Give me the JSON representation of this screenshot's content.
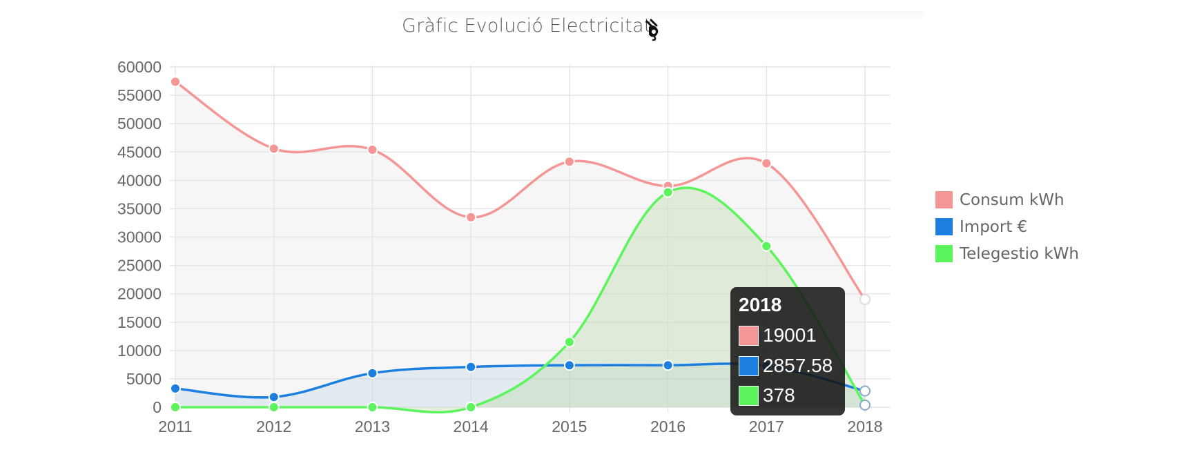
{
  "title": "Gràfic Evolució Electricitat",
  "icon": "plug-icon",
  "chart_data": {
    "type": "line",
    "title": "Gràfic Evolució Electricitat",
    "categories": [
      "2011",
      "2012",
      "2013",
      "2014",
      "2015",
      "2016",
      "2017",
      "2018"
    ],
    "ylim": [
      0,
      60000
    ],
    "yticks": [
      "0",
      "5000",
      "10000",
      "15000",
      "20000",
      "25000",
      "30000",
      "35000",
      "40000",
      "45000",
      "50000",
      "55000",
      "60000"
    ],
    "grid": true,
    "legend_position": "right",
    "series": [
      {
        "name": "Consum kWh",
        "color": "#f59595",
        "fill": "rgba(230,230,230,0.35)",
        "values": [
          57400,
          45600,
          45400,
          33500,
          43300,
          39000,
          43000,
          19001
        ]
      },
      {
        "name": "Import €",
        "color": "#1c7fe0",
        "fill": "rgba(170,200,225,0.25)",
        "values": [
          3300,
          1800,
          6000,
          7100,
          7400,
          7400,
          7300,
          2857.58
        ]
      },
      {
        "name": "Telegestio kWh",
        "color": "#5cf45c",
        "fill": "rgba(180,215,160,0.35)",
        "values": [
          0,
          0,
          0,
          0,
          11500,
          37900,
          28400,
          378
        ]
      }
    ]
  },
  "tooltip": {
    "title": "2018",
    "rows": [
      {
        "value": "19001",
        "color": "#f59595"
      },
      {
        "value": "2857.58",
        "color": "#1c7fe0"
      },
      {
        "value": "378",
        "color": "#5cf45c"
      }
    ]
  }
}
